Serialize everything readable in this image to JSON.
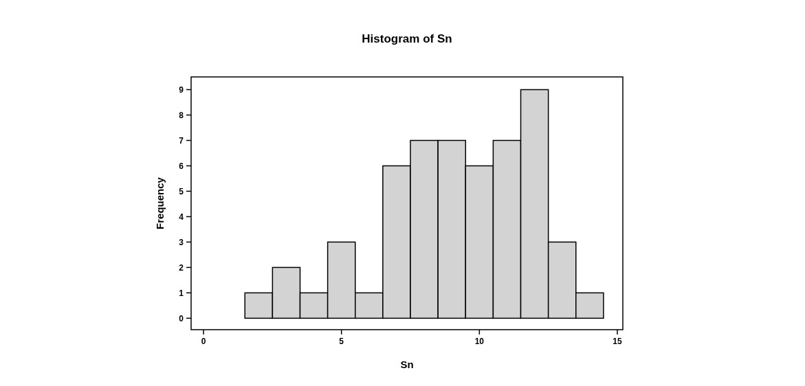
{
  "chart_data": {
    "type": "histogram",
    "title": "Histogram of Sn",
    "xlabel": "Sn",
    "ylabel": "Frequency",
    "bins": [
      0.5,
      1.5,
      2.5,
      3.5,
      4.5,
      5.5,
      6.5,
      7.5,
      8.5,
      9.5,
      10.5,
      11.5,
      12.5,
      13.5,
      14.5
    ],
    "values": [
      0,
      1,
      2,
      1,
      3,
      1,
      6,
      7,
      7,
      6,
      7,
      9,
      3,
      1
    ],
    "color": "#d3d3d3",
    "xlim": [
      -0.45,
      15.2
    ],
    "ylim": [
      -0.45,
      9.5
    ],
    "xticks": [
      0,
      5,
      10,
      15
    ],
    "yticks": [
      0,
      1,
      2,
      3,
      4,
      5,
      6,
      7,
      8,
      9
    ],
    "grid": false
  }
}
